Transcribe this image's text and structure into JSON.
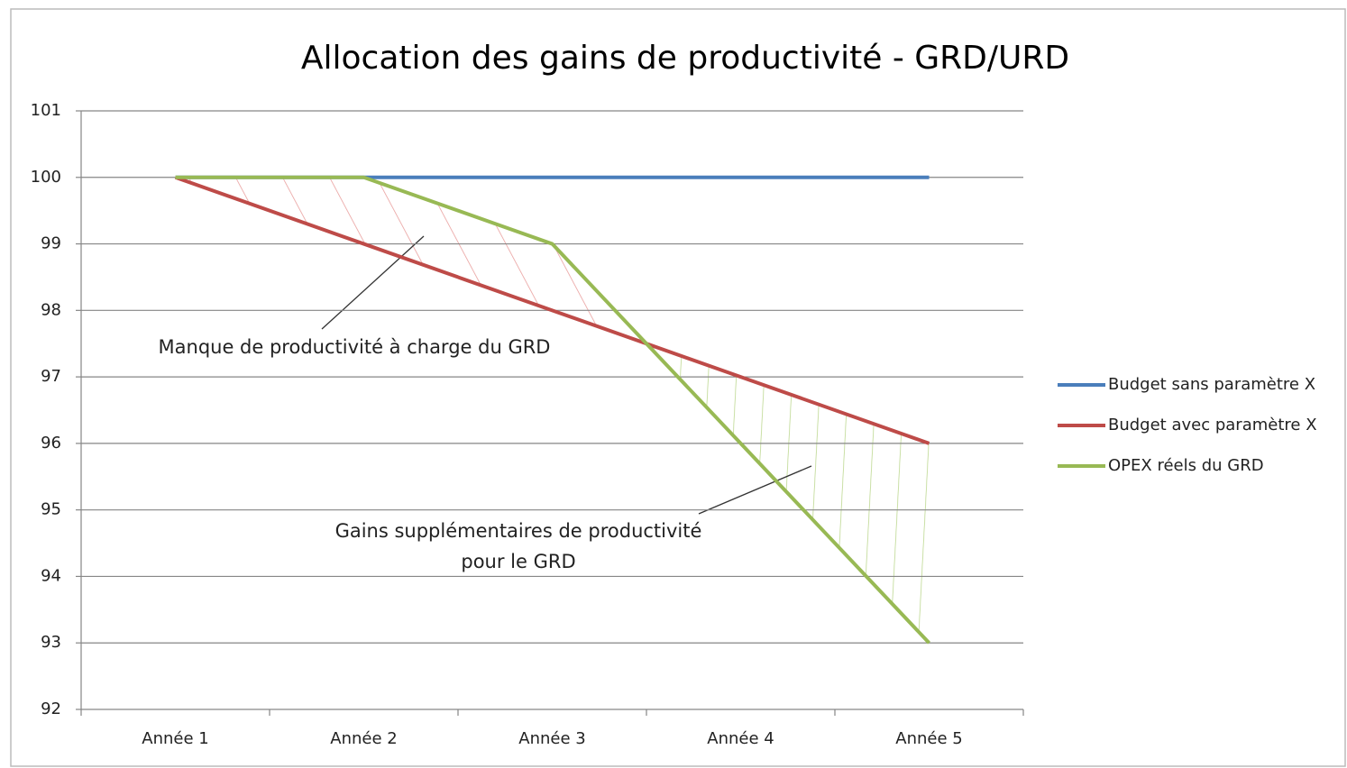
{
  "chart_data": {
    "type": "line",
    "title": "Allocation des gains de productivité - GRD/URD",
    "categories": [
      "Année 1",
      "Année 2",
      "Année 3",
      "Année 4",
      "Année 5"
    ],
    "series": [
      {
        "name": "Budget sans paramètre X",
        "color": "#4a7ebb",
        "values": [
          100,
          100,
          100,
          100,
          100
        ]
      },
      {
        "name": "Budget avec paramètre X",
        "color": "#be4b48",
        "values": [
          100,
          99,
          98,
          97,
          96
        ]
      },
      {
        "name": "OPEX réels du GRD",
        "color": "#98b954",
        "values": [
          100,
          100,
          99,
          96,
          93
        ]
      }
    ],
    "ylim": [
      92,
      101
    ],
    "yticks": [
      92,
      93,
      94,
      95,
      96,
      97,
      98,
      99,
      100,
      101
    ],
    "grid": true,
    "legend": "right",
    "annotations": [
      {
        "lines": [
          "Manque de productivité à charge du GRD"
        ]
      },
      {
        "lines": [
          "Gains supplémentaires de productivité",
          "pour le GRD"
        ]
      }
    ]
  }
}
